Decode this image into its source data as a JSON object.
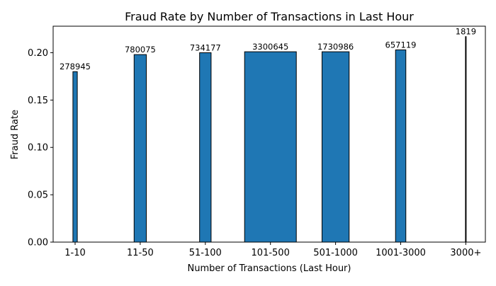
{
  "chart_data": {
    "type": "bar",
    "title": "Fraud Rate by Number of Transactions in Last Hour",
    "xlabel": "Number of Transactions (Last Hour)",
    "ylabel": "Fraud Rate",
    "categories": [
      "1-10",
      "11-50",
      "51-100",
      "101-500",
      "501-1000",
      "1001-3000",
      "3000+"
    ],
    "values": [
      0.18,
      0.198,
      0.2,
      0.201,
      0.201,
      0.203,
      0.217
    ],
    "counts": [
      278945,
      780075,
      734177,
      3300645,
      1730986,
      657119,
      1819
    ],
    "bar_labels": [
      "278945",
      "780075",
      "734177",
      "3300645",
      "1730986",
      "657119",
      "1819"
    ],
    "ylim": [
      0,
      0.228
    ],
    "yticks": [
      0.0,
      0.05,
      0.1,
      0.15,
      0.2
    ],
    "ytick_labels": [
      "0.00",
      "0.05",
      "0.10",
      "0.15",
      "0.20"
    ],
    "grid": false,
    "legend": "none",
    "bar_color": "#1f77b4",
    "edge_color": "#000000"
  }
}
